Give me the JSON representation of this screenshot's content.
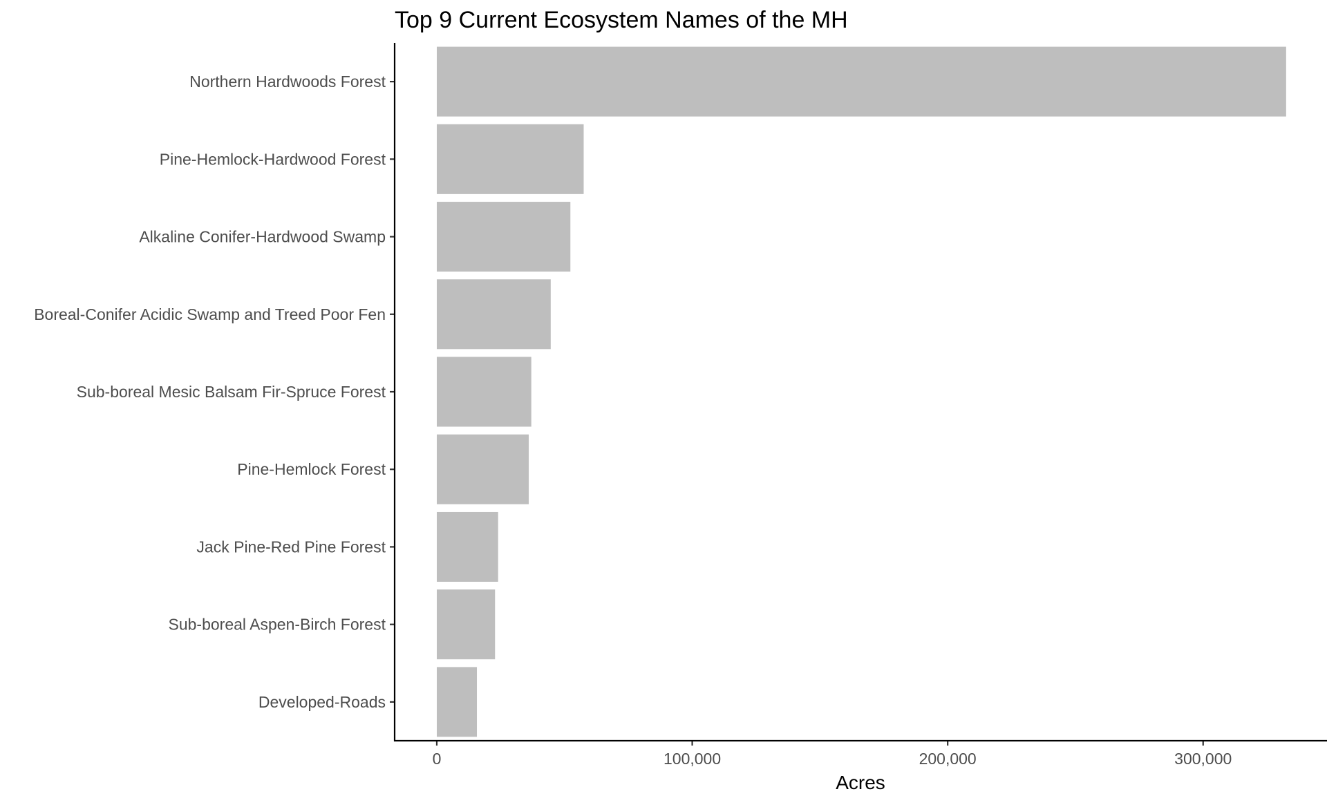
{
  "chart_data": {
    "type": "bar",
    "orientation": "horizontal",
    "title": "Top 9 Current Ecosystem Names of the MH",
    "xlabel": "Acres",
    "ylabel": "",
    "categories": [
      "Northern Hardwoods Forest",
      "Pine-Hemlock-Hardwood Forest",
      "Alkaline Conifer-Hardwood Swamp",
      "Boreal-Conifer Acidic Swamp and Treed Poor Fen",
      "Sub-boreal Mesic Balsam Fir-Spruce Forest",
      "Pine-Hemlock Forest",
      "Jack Pine-Red Pine Forest",
      "Sub-boreal Aspen-Birch Forest",
      "Developed-Roads"
    ],
    "values": [
      332500,
      57500,
      52300,
      44600,
      37000,
      36000,
      24000,
      22800,
      15700
    ],
    "xlim": [
      -16500,
      348500
    ],
    "xticks": [
      0,
      100000,
      200000,
      300000
    ],
    "xtick_labels": [
      "0",
      "100,000",
      "200,000",
      "300,000"
    ],
    "bar_color": "#bebebe",
    "grid": false,
    "legend": "none"
  }
}
